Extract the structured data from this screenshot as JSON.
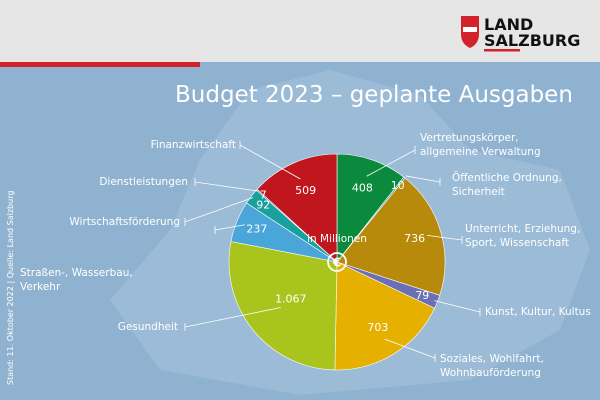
{
  "header": {
    "logo_line1": "LAND",
    "logo_line2": "SALZBURG"
  },
  "source": "Stand: 11. Oktober 2022 | Quelle: Land Salzburg",
  "chart_data": {
    "type": "pie",
    "title": "Budget 2023 – geplante Ausgaben",
    "unit_note": "in Millionen",
    "currency_symbol": "€",
    "categories": [
      "Vertretungskörper, allgemeine Verwaltung",
      "Öffentliche Ordnung, Sicherheit",
      "Unterricht, Erziehung, Sport, Wissenschaft",
      "Kunst, Kultur, Kultus",
      "Soziales, Wohlfahrt, Wohnbauförderung",
      "Gesundheit",
      "Straßen-, Wasserbau, Verkehr",
      "Wirtschaftsförderung",
      "Dienstleistungen",
      "Finanzwirtschaft"
    ],
    "values": [
      408,
      10,
      736,
      79,
      703,
      1067,
      237,
      92,
      7,
      509
    ],
    "value_labels": [
      "408",
      "10",
      "736",
      "79",
      "703",
      "1.067",
      "237",
      "92",
      "7",
      "509"
    ],
    "colors": [
      "#0b8a3e",
      "#2aa39a",
      "#b88a0c",
      "#6a6fb6",
      "#e6b000",
      "#a9c41c",
      "#4aa6d8",
      "#17a09c",
      "#1f5fa0",
      "#c0161e"
    ]
  }
}
